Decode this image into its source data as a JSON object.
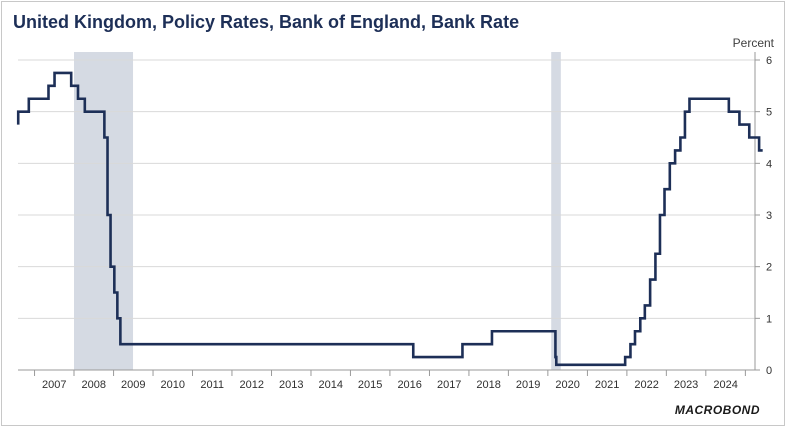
{
  "chart_data": {
    "type": "line",
    "title": "United Kingdom, Policy Rates, Bank of England, Bank Rate",
    "ylabel": "Percent",
    "ylim": [
      0,
      6
    ],
    "xlim": [
      "2006-08-01",
      "2025-03-31"
    ],
    "y_ticks": [
      "0",
      "1",
      "2",
      "3",
      "4",
      "5",
      "6"
    ],
    "x_ticks": [
      "2007",
      "2008",
      "2009",
      "2010",
      "2011",
      "2012",
      "2013",
      "2014",
      "2015",
      "2016",
      "2017",
      "2018",
      "2019",
      "2020",
      "2021",
      "2022",
      "2023",
      "2024"
    ],
    "grid": true,
    "legend": "none",
    "series": [
      {
        "color": "#1d2f57",
        "points": [
          [
            "2006-08-03",
            5.0
          ],
          [
            "2006-08-03",
            4.75
          ],
          [
            "2006-08-03",
            4.75
          ],
          [
            "2006-08-03",
            5.0
          ],
          [
            "2006-08-04",
            5.0
          ],
          [
            "2006-11-09",
            5.0
          ],
          [
            "2006-11-09",
            5.25
          ],
          [
            "2007-05-10",
            5.25
          ],
          [
            "2007-05-10",
            5.5
          ],
          [
            "2007-07-05",
            5.5
          ],
          [
            "2007-07-05",
            5.75
          ],
          [
            "2007-12-06",
            5.75
          ],
          [
            "2007-12-06",
            5.5
          ],
          [
            "2008-02-07",
            5.5
          ],
          [
            "2008-02-07",
            5.25
          ],
          [
            "2008-04-10",
            5.25
          ],
          [
            "2008-04-10",
            5.0
          ],
          [
            "2008-10-08",
            5.0
          ],
          [
            "2008-10-08",
            4.5
          ],
          [
            "2008-11-06",
            4.5
          ],
          [
            "2008-11-06",
            3.0
          ],
          [
            "2008-12-04",
            3.0
          ],
          [
            "2008-12-04",
            2.0
          ],
          [
            "2009-01-08",
            2.0
          ],
          [
            "2009-01-08",
            1.5
          ],
          [
            "2009-02-05",
            1.5
          ],
          [
            "2009-02-05",
            1.0
          ],
          [
            "2009-03-05",
            1.0
          ],
          [
            "2009-03-05",
            0.5
          ],
          [
            "2016-08-04",
            0.5
          ],
          [
            "2016-08-04",
            0.25
          ],
          [
            "2017-11-02",
            0.25
          ],
          [
            "2017-11-02",
            0.5
          ],
          [
            "2018-08-02",
            0.5
          ],
          [
            "2018-08-02",
            0.75
          ],
          [
            "2020-03-11",
            0.75
          ],
          [
            "2020-03-11",
            0.25
          ],
          [
            "2020-03-19",
            0.25
          ],
          [
            "2020-03-19",
            0.1
          ],
          [
            "2021-12-16",
            0.1
          ],
          [
            "2021-12-16",
            0.25
          ],
          [
            "2022-02-03",
            0.25
          ],
          [
            "2022-02-03",
            0.5
          ],
          [
            "2022-03-17",
            0.5
          ],
          [
            "2022-03-17",
            0.75
          ],
          [
            "2022-05-05",
            0.75
          ],
          [
            "2022-05-05",
            1.0
          ],
          [
            "2022-06-16",
            1.0
          ],
          [
            "2022-06-16",
            1.25
          ],
          [
            "2022-08-04",
            1.25
          ],
          [
            "2022-08-04",
            1.75
          ],
          [
            "2022-09-22",
            1.75
          ],
          [
            "2022-09-22",
            2.25
          ],
          [
            "2022-11-03",
            2.25
          ],
          [
            "2022-11-03",
            3.0
          ],
          [
            "2022-12-15",
            3.0
          ],
          [
            "2022-12-15",
            3.5
          ],
          [
            "2023-02-02",
            3.5
          ],
          [
            "2023-02-02",
            4.0
          ],
          [
            "2023-03-23",
            4.0
          ],
          [
            "2023-03-23",
            4.25
          ],
          [
            "2023-05-11",
            4.25
          ],
          [
            "2023-05-11",
            4.5
          ],
          [
            "2023-06-22",
            4.5
          ],
          [
            "2023-06-22",
            5.0
          ],
          [
            "2023-08-03",
            5.0
          ],
          [
            "2023-08-03",
            5.25
          ],
          [
            "2024-08-01",
            5.25
          ],
          [
            "2024-08-01",
            5.0
          ],
          [
            "2024-11-07",
            5.0
          ],
          [
            "2024-11-07",
            4.75
          ],
          [
            "2025-02-06",
            4.75
          ],
          [
            "2025-02-06",
            4.5
          ],
          [
            "2025-05-08",
            4.5
          ],
          [
            "2025-05-08",
            4.25
          ],
          [
            "2025-06-10",
            4.25
          ]
        ]
      }
    ],
    "recessions": [
      {
        "start": "2008-01-01",
        "end": "2009-06-30",
        "color": "#d5dae3"
      },
      {
        "start": "2020-02-01",
        "end": "2020-04-30",
        "color": "#d5dae3"
      }
    ]
  },
  "branding": {
    "logo": "MACROBOND"
  }
}
